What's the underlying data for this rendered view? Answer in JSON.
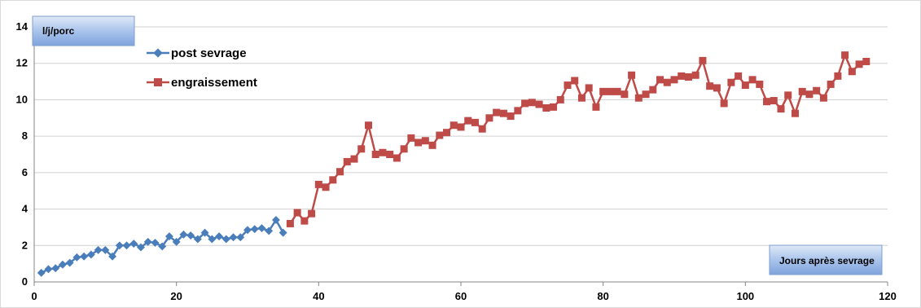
{
  "chart_data": {
    "type": "line",
    "ylabel": "l/j/porc",
    "xlabel": "Jours après sevrage",
    "xlim": [
      0,
      120
    ],
    "ylim": [
      0,
      14
    ],
    "xticks": [
      0,
      20,
      40,
      60,
      80,
      100,
      120
    ],
    "yticks": [
      0,
      2,
      4,
      6,
      8,
      10,
      12,
      14
    ],
    "grid": "horizontal",
    "legend_position": "top-left",
    "series": [
      {
        "name": "post sevrage",
        "color": "#4A7EBB",
        "marker": "diamond",
        "points": [
          [
            1,
            0.5
          ],
          [
            2,
            0.7
          ],
          [
            3,
            0.75
          ],
          [
            4,
            0.95
          ],
          [
            5,
            1.05
          ],
          [
            6,
            1.35
          ],
          [
            7,
            1.4
          ],
          [
            8,
            1.5
          ],
          [
            9,
            1.75
          ],
          [
            10,
            1.75
          ],
          [
            11,
            1.4
          ],
          [
            12,
            2.0
          ],
          [
            13,
            2.0
          ],
          [
            14,
            2.1
          ],
          [
            15,
            1.9
          ],
          [
            16,
            2.2
          ],
          [
            17,
            2.15
          ],
          [
            18,
            1.95
          ],
          [
            19,
            2.5
          ],
          [
            20,
            2.2
          ],
          [
            21,
            2.6
          ],
          [
            22,
            2.55
          ],
          [
            23,
            2.35
          ],
          [
            24,
            2.7
          ],
          [
            25,
            2.35
          ],
          [
            26,
            2.5
          ],
          [
            27,
            2.35
          ],
          [
            28,
            2.45
          ],
          [
            29,
            2.45
          ],
          [
            30,
            2.85
          ],
          [
            31,
            2.9
          ],
          [
            32,
            2.95
          ],
          [
            33,
            2.8
          ],
          [
            34,
            3.4
          ],
          [
            35,
            2.7
          ]
        ]
      },
      {
        "name": "engraissement",
        "color": "#BE4B48",
        "marker": "square",
        "points": [
          [
            36,
            3.2
          ],
          [
            37,
            3.8
          ],
          [
            38,
            3.35
          ],
          [
            39,
            3.75
          ],
          [
            40,
            5.35
          ],
          [
            41,
            5.2
          ],
          [
            42,
            5.6
          ],
          [
            43,
            6.05
          ],
          [
            44,
            6.6
          ],
          [
            45,
            6.75
          ],
          [
            46,
            7.3
          ],
          [
            47,
            8.6
          ],
          [
            48,
            7.0
          ],
          [
            49,
            7.1
          ],
          [
            50,
            7.0
          ],
          [
            51,
            6.8
          ],
          [
            52,
            7.3
          ],
          [
            53,
            7.9
          ],
          [
            54,
            7.65
          ],
          [
            55,
            7.75
          ],
          [
            56,
            7.5
          ],
          [
            57,
            8.05
          ],
          [
            58,
            8.2
          ],
          [
            59,
            8.6
          ],
          [
            60,
            8.5
          ],
          [
            61,
            8.85
          ],
          [
            62,
            8.75
          ],
          [
            63,
            8.4
          ],
          [
            64,
            9.0
          ],
          [
            65,
            9.3
          ],
          [
            66,
            9.25
          ],
          [
            67,
            9.1
          ],
          [
            68,
            9.4
          ],
          [
            69,
            9.8
          ],
          [
            70,
            9.85
          ],
          [
            71,
            9.75
          ],
          [
            72,
            9.55
          ],
          [
            73,
            9.6
          ],
          [
            74,
            10.0
          ],
          [
            75,
            10.8
          ],
          [
            76,
            11.05
          ],
          [
            77,
            10.1
          ],
          [
            78,
            10.65
          ],
          [
            79,
            9.6
          ],
          [
            80,
            10.45
          ],
          [
            81,
            10.45
          ],
          [
            82,
            10.45
          ],
          [
            83,
            10.3
          ],
          [
            84,
            11.35
          ],
          [
            85,
            10.1
          ],
          [
            86,
            10.3
          ],
          [
            87,
            10.55
          ],
          [
            88,
            11.1
          ],
          [
            89,
            10.95
          ],
          [
            90,
            11.1
          ],
          [
            91,
            11.3
          ],
          [
            92,
            11.25
          ],
          [
            93,
            11.35
          ],
          [
            94,
            12.15
          ],
          [
            95,
            10.75
          ],
          [
            96,
            10.65
          ],
          [
            97,
            9.8
          ],
          [
            98,
            10.95
          ],
          [
            99,
            11.3
          ],
          [
            100,
            10.8
          ],
          [
            101,
            11.1
          ],
          [
            102,
            10.85
          ],
          [
            103,
            9.9
          ],
          [
            104,
            9.95
          ],
          [
            105,
            9.5
          ],
          [
            106,
            10.25
          ],
          [
            107,
            9.25
          ],
          [
            108,
            10.45
          ],
          [
            109,
            10.3
          ],
          [
            110,
            10.5
          ],
          [
            111,
            10.1
          ],
          [
            112,
            10.85
          ],
          [
            113,
            11.3
          ],
          [
            114,
            12.45
          ],
          [
            115,
            11.55
          ],
          [
            116,
            11.95
          ],
          [
            117,
            12.1
          ]
        ]
      }
    ]
  }
}
